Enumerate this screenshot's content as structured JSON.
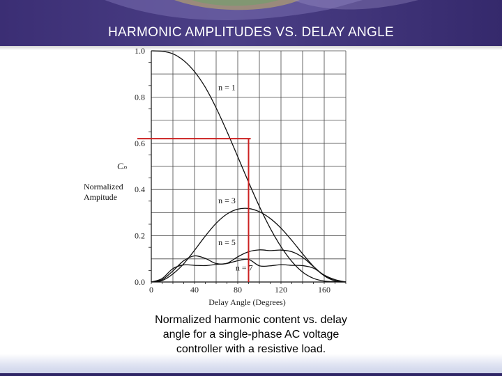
{
  "slide": {
    "title": "HARMONIC AMPLITUDES VS. DELAY ANGLE",
    "left_label_line1": "Normalized",
    "left_label_line2": "Ampitude",
    "caption_line1": "Normalized harmonic content vs. delay",
    "caption_line2": "angle for a single-phase  AC voltage",
    "caption_line3": "controller with a resistive load."
  },
  "colors": {
    "header_bg": "#2f2566",
    "marker": "#cc2020",
    "curve": "#111111",
    "grid": "#444444"
  },
  "chart_data": {
    "type": "line",
    "xlabel": "Delay Angle (Degrees)",
    "ylabel": "Cₙ",
    "xlim": [
      0,
      180
    ],
    "ylim": [
      0,
      1.0
    ],
    "x_ticks": [
      0,
      40,
      80,
      120,
      160
    ],
    "y_ticks": [
      "0.0",
      "0.2",
      "0.4",
      "0.6",
      "0.8",
      "1.0"
    ],
    "grid": true,
    "series": [
      {
        "name": "n = 1",
        "label_at": [
          62,
          0.83
        ],
        "x": [
          0,
          10,
          20,
          30,
          40,
          50,
          60,
          70,
          80,
          90,
          100,
          110,
          120,
          130,
          140,
          150,
          160,
          170,
          180
        ],
        "values": [
          1.0,
          0.998,
          0.987,
          0.958,
          0.91,
          0.842,
          0.753,
          0.651,
          0.542,
          0.432,
          0.327,
          0.233,
          0.153,
          0.089,
          0.043,
          0.016,
          0.004,
          0.001,
          0
        ]
      },
      {
        "name": "n = 3",
        "label_at": [
          62,
          0.34
        ],
        "x": [
          0,
          10,
          20,
          30,
          40,
          50,
          60,
          70,
          80,
          90,
          100,
          110,
          120,
          130,
          140,
          150,
          160,
          170,
          180
        ],
        "values": [
          0,
          0.006,
          0.035,
          0.079,
          0.137,
          0.199,
          0.254,
          0.294,
          0.315,
          0.318,
          0.304,
          0.275,
          0.233,
          0.18,
          0.122,
          0.068,
          0.027,
          0.005,
          0
        ]
      },
      {
        "name": "n = 5",
        "label_at": [
          62,
          0.16
        ],
        "x": [
          0,
          10,
          20,
          30,
          40,
          50,
          60,
          70,
          80,
          90,
          100,
          110,
          120,
          130,
          140,
          150,
          160,
          170,
          180
        ],
        "values": [
          0,
          0.01,
          0.048,
          0.092,
          0.113,
          0.102,
          0.08,
          0.081,
          0.109,
          0.131,
          0.139,
          0.136,
          0.138,
          0.131,
          0.107,
          0.067,
          0.028,
          0.006,
          0
        ]
      },
      {
        "name": "n = 7",
        "label_at": [
          78,
          0.05
        ],
        "x": [
          0,
          10,
          20,
          30,
          40,
          50,
          60,
          70,
          80,
          90,
          100,
          110,
          120,
          130,
          140,
          150,
          160,
          170,
          180
        ],
        "values": [
          0,
          0.015,
          0.058,
          0.074,
          0.072,
          0.071,
          0.076,
          0.08,
          0.092,
          0.098,
          0.07,
          0.07,
          0.075,
          0.072,
          0.071,
          0.06,
          0.03,
          0.01,
          0
        ]
      }
    ],
    "annotations": {
      "marker_x": 90,
      "marker_y": 0.62
    }
  }
}
